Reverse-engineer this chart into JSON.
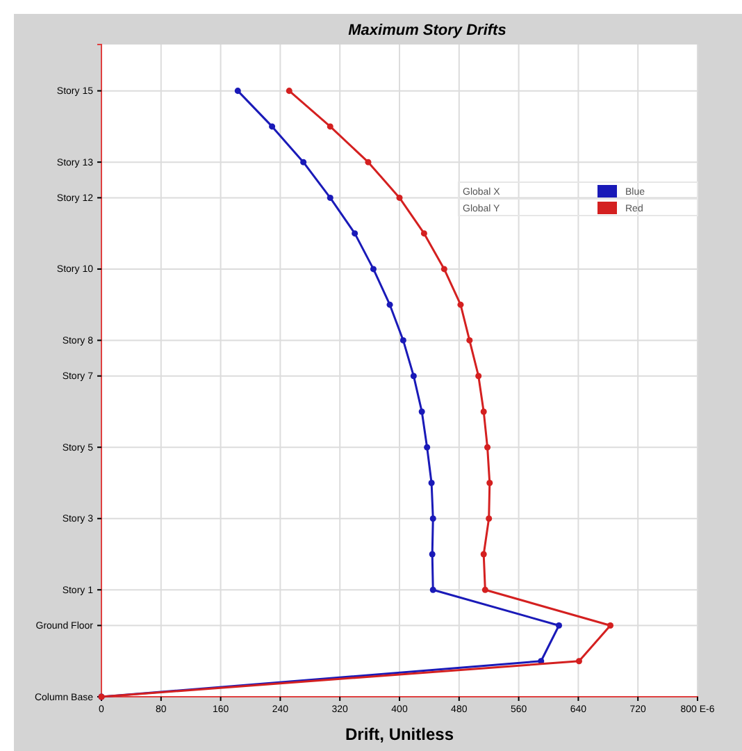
{
  "chart_data": {
    "type": "line",
    "orientation": "horizontal",
    "title": "Maximum Story Drifts",
    "xlabel": "Drift, Unitless",
    "xlim": [
      0,
      800
    ],
    "xticks": [
      0,
      80,
      160,
      240,
      320,
      400,
      480,
      560,
      640,
      720,
      {
        "value": 800,
        "label": "800 E-6"
      }
    ],
    "categories": [
      "Story 15",
      null,
      "Story 13",
      "Story 12",
      null,
      "Story 10",
      null,
      "Story 8",
      "Story 7",
      null,
      "Story 5",
      null,
      "Story 3",
      null,
      "Story 1",
      "Ground Floor",
      null,
      "Column Base"
    ],
    "grid": true,
    "legend": "top right",
    "marker": "circle",
    "line_style": "solid",
    "annotations": [
      "Blue",
      "Red"
    ],
    "series": [
      {
        "name": "Global X",
        "color": "#1a1ab8",
        "values": [
          183,
          229,
          271,
          307,
          340,
          365,
          387,
          405,
          419,
          430,
          437,
          443,
          445,
          444,
          445,
          614,
          590,
          0
        ]
      },
      {
        "name": "Global Y",
        "color": "#d42020",
        "values": [
          252,
          307,
          358,
          400,
          433,
          460,
          482,
          494,
          506,
          513,
          518,
          521,
          520,
          513,
          515,
          683,
          641,
          0
        ]
      }
    ]
  }
}
